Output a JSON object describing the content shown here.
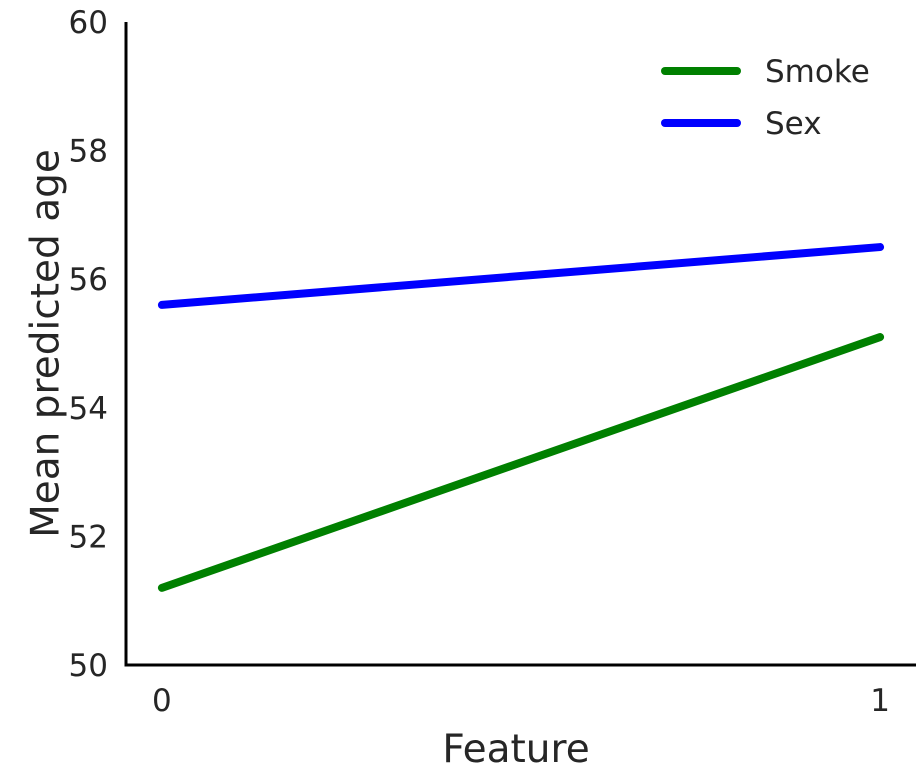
{
  "chart_data": {
    "type": "line",
    "title": "",
    "xlabel": "Feature",
    "ylabel": "Mean predicted age",
    "x": [
      0,
      1
    ],
    "xticks": [
      "0",
      "1"
    ],
    "xlim": [
      -0.05,
      1.05
    ],
    "yticks": [
      "50",
      "52",
      "54",
      "56",
      "58",
      "60"
    ],
    "ylim": [
      50,
      60
    ],
    "grid": false,
    "legend_position": "top-right",
    "series": [
      {
        "name": "Smoke",
        "values": [
          51.2,
          55.1
        ],
        "color": "#008000"
      },
      {
        "name": "Sex",
        "values": [
          55.6,
          56.5
        ],
        "color": "#0000ff"
      }
    ]
  }
}
